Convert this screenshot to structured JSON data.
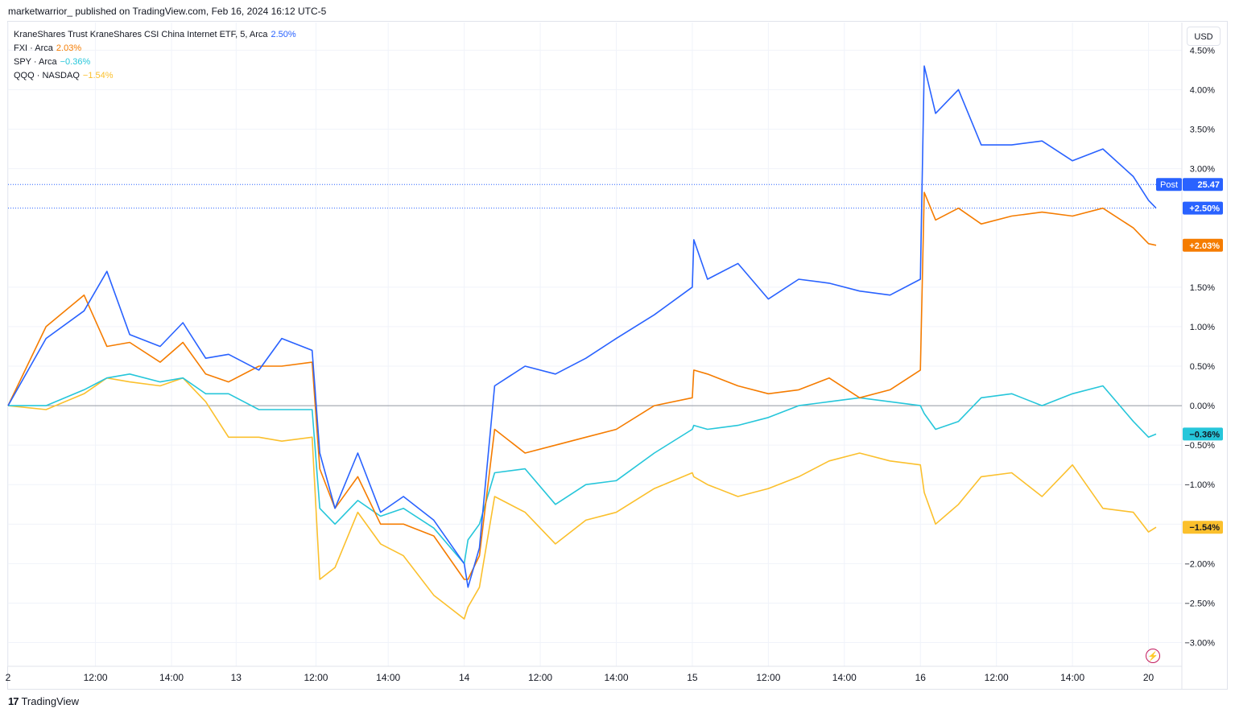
{
  "header": {
    "text": "marketwarrior_ published on TradingView.com, Feb 16, 2024 16:12 UTC-5"
  },
  "legend": [
    {
      "name": "KraneShares Trust KraneShares CSI China Internet ETF, 5, Arca",
      "value": "2.50%",
      "color": "#2962ff"
    },
    {
      "name": "FXI · Arca",
      "value": "2.03%",
      "color": "#f57c00"
    },
    {
      "name": "SPY · Arca",
      "value": "−0.36%",
      "color": "#26c6da"
    },
    {
      "name": "QQQ · NASDAQ",
      "value": "−1.54%",
      "color": "#fbc02d"
    }
  ],
  "currency": "USD",
  "footer": {
    "brand": "TradingView",
    "logo": "17"
  },
  "icons": {
    "flash": "flash-icon"
  },
  "badges": {
    "post_label": "Post",
    "post_value": "25.47",
    "kweb": "+2.50%",
    "fxi": "+2.03%",
    "spy": "−0.36%",
    "qqq": "−1.54%"
  },
  "chart_data": {
    "type": "line",
    "title": "",
    "xlabel": "",
    "ylabel": "",
    "y_unit": "%",
    "ylim": [
      -3.3,
      4.85
    ],
    "grid": true,
    "zero_line": true,
    "x_ticks": [
      "2",
      "12:00",
      "14:00",
      "13",
      "12:00",
      "14:00",
      "14",
      "12:00",
      "14:00",
      "15",
      "12:00",
      "14:00",
      "16",
      "12:00",
      "14:00",
      "20"
    ],
    "y_ticks": [
      "4.50%",
      "4.00%",
      "3.50%",
      "3.00%",
      "1.50%",
      "1.00%",
      "0.50%",
      "0.00%",
      "−0.50%",
      "−1.00%",
      "−1.50%",
      "−2.00%",
      "−2.50%",
      "−3.00%"
    ],
    "post_price": 25.47,
    "series": [
      {
        "name": "KraneShares Trust KraneShares CSI China Internet ETF",
        "color": "#2962ff",
        "x": [
          0,
          0.5,
          1,
          1.3,
          1.6,
          2,
          2.3,
          2.6,
          2.9,
          3.3,
          3.6,
          4,
          4.1,
          4.3,
          4.6,
          4.9,
          5.2,
          5.6,
          6,
          6.05,
          6.2,
          6.4,
          6.8,
          7.2,
          7.6,
          8,
          8.5,
          9,
          9.02,
          9.2,
          9.6,
          10,
          10.4,
          10.8,
          11.2,
          11.6,
          12,
          12.05,
          12.2,
          12.5,
          12.8,
          13.2,
          13.6,
          14,
          14.4,
          14.8,
          15,
          15.1
        ],
        "y": [
          0,
          0.85,
          1.2,
          1.7,
          0.9,
          0.75,
          1.05,
          0.6,
          0.65,
          0.45,
          0.85,
          0.7,
          -0.6,
          -1.3,
          -0.6,
          -1.35,
          -1.15,
          -1.45,
          -2.0,
          -2.3,
          -1.8,
          0.25,
          0.5,
          0.4,
          0.6,
          0.85,
          1.15,
          1.5,
          2.1,
          1.6,
          1.8,
          1.35,
          1.6,
          1.55,
          1.45,
          1.4,
          1.6,
          4.3,
          3.7,
          4.0,
          3.3,
          3.3,
          3.35,
          3.1,
          3.25,
          2.9,
          2.6,
          2.5
        ]
      },
      {
        "name": "FXI",
        "color": "#f57c00",
        "x": [
          0,
          0.5,
          1,
          1.3,
          1.6,
          2,
          2.3,
          2.6,
          2.9,
          3.3,
          3.6,
          4,
          4.1,
          4.3,
          4.6,
          4.9,
          5.2,
          5.6,
          6,
          6.05,
          6.2,
          6.4,
          6.8,
          7.2,
          7.6,
          8,
          8.5,
          9,
          9.02,
          9.2,
          9.6,
          10,
          10.4,
          10.8,
          11.2,
          11.6,
          12,
          12.05,
          12.2,
          12.5,
          12.8,
          13.2,
          13.6,
          14,
          14.4,
          14.8,
          15,
          15.1
        ],
        "y": [
          0,
          1.0,
          1.4,
          0.75,
          0.8,
          0.55,
          0.8,
          0.4,
          0.3,
          0.5,
          0.5,
          0.55,
          -0.8,
          -1.3,
          -0.9,
          -1.5,
          -1.5,
          -1.65,
          -2.2,
          -2.2,
          -1.9,
          -0.3,
          -0.6,
          -0.5,
          -0.4,
          -0.3,
          0.0,
          0.1,
          0.45,
          0.4,
          0.25,
          0.15,
          0.2,
          0.35,
          0.1,
          0.2,
          0.45,
          2.7,
          2.35,
          2.5,
          2.3,
          2.4,
          2.45,
          2.4,
          2.5,
          2.25,
          2.05,
          2.03
        ]
      },
      {
        "name": "SPY",
        "color": "#26c6da",
        "x": [
          0,
          0.5,
          1,
          1.3,
          1.6,
          2,
          2.3,
          2.6,
          2.9,
          3.3,
          3.6,
          4,
          4.1,
          4.3,
          4.6,
          4.9,
          5.2,
          5.6,
          6,
          6.05,
          6.2,
          6.4,
          6.8,
          7.2,
          7.6,
          8,
          8.5,
          9,
          9.02,
          9.2,
          9.6,
          10,
          10.4,
          10.8,
          11.2,
          11.6,
          12,
          12.05,
          12.2,
          12.5,
          12.8,
          13.2,
          13.6,
          14,
          14.4,
          14.8,
          15,
          15.1
        ],
        "y": [
          0,
          0.0,
          0.2,
          0.35,
          0.4,
          0.3,
          0.35,
          0.15,
          0.15,
          -0.05,
          -0.05,
          -0.05,
          -1.3,
          -1.5,
          -1.2,
          -1.4,
          -1.3,
          -1.55,
          -2.0,
          -1.7,
          -1.5,
          -0.85,
          -0.8,
          -1.25,
          -1.0,
          -0.95,
          -0.6,
          -0.3,
          -0.25,
          -0.3,
          -0.25,
          -0.15,
          0.0,
          0.05,
          0.1,
          0.05,
          0.0,
          -0.1,
          -0.3,
          -0.2,
          0.1,
          0.15,
          0.0,
          0.15,
          0.25,
          -0.2,
          -0.4,
          -0.36
        ]
      },
      {
        "name": "QQQ",
        "color": "#fbc02d",
        "x": [
          0,
          0.5,
          1,
          1.3,
          1.6,
          2,
          2.3,
          2.6,
          2.9,
          3.3,
          3.6,
          4,
          4.1,
          4.3,
          4.6,
          4.9,
          5.2,
          5.6,
          6,
          6.05,
          6.2,
          6.4,
          6.8,
          7.2,
          7.6,
          8,
          8.5,
          9,
          9.02,
          9.2,
          9.6,
          10,
          10.4,
          10.8,
          11.2,
          11.6,
          12,
          12.05,
          12.2,
          12.5,
          12.8,
          13.2,
          13.6,
          14,
          14.4,
          14.8,
          15,
          15.1
        ],
        "y": [
          0,
          -0.05,
          0.15,
          0.35,
          0.3,
          0.25,
          0.35,
          0.05,
          -0.4,
          -0.4,
          -0.45,
          -0.4,
          -2.2,
          -2.05,
          -1.35,
          -1.75,
          -1.9,
          -2.4,
          -2.7,
          -2.55,
          -2.3,
          -1.15,
          -1.35,
          -1.75,
          -1.45,
          -1.35,
          -1.05,
          -0.85,
          -0.9,
          -1.0,
          -1.15,
          -1.05,
          -0.9,
          -0.7,
          -0.6,
          -0.7,
          -0.75,
          -1.1,
          -1.5,
          -1.25,
          -0.9,
          -0.85,
          -1.15,
          -0.75,
          -1.3,
          -1.35,
          -1.6,
          -1.54
        ]
      }
    ]
  }
}
